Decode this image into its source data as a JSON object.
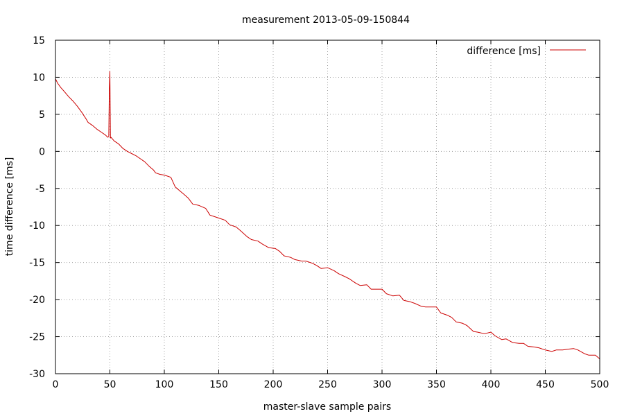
{
  "chart_data": {
    "type": "line",
    "title": "measurement 2013-05-09-150844",
    "xlabel": "master-slave sample pairs",
    "ylabel": "time difference [ms]",
    "xlim": [
      0,
      500
    ],
    "ylim": [
      -30,
      15
    ],
    "xticks": [
      0,
      50,
      100,
      150,
      200,
      250,
      300,
      350,
      400,
      450,
      500
    ],
    "yticks": [
      -30,
      -25,
      -20,
      -15,
      -10,
      -5,
      0,
      5,
      10,
      15
    ],
    "grid": true,
    "legend_position": "top-right",
    "series": [
      {
        "name": "difference [ms]",
        "color": "#cc0000",
        "points": [
          [
            0,
            9.8
          ],
          [
            2,
            9.2
          ],
          [
            5,
            8.6
          ],
          [
            8,
            8.1
          ],
          [
            12,
            7.4
          ],
          [
            16,
            6.8
          ],
          [
            20,
            6.1
          ],
          [
            24,
            5.3
          ],
          [
            28,
            4.4
          ],
          [
            30,
            3.9
          ],
          [
            34,
            3.5
          ],
          [
            38,
            3.0
          ],
          [
            42,
            2.6
          ],
          [
            46,
            2.2
          ],
          [
            48,
            1.9
          ],
          [
            49,
            2.0
          ],
          [
            49.5,
            8.5
          ],
          [
            50,
            10.8
          ],
          [
            50.5,
            1.8
          ],
          [
            51,
            1.9
          ],
          [
            54,
            1.4
          ],
          [
            58,
            1.0
          ],
          [
            62,
            0.4
          ],
          [
            66,
            0.0
          ],
          [
            70,
            -0.3
          ],
          [
            74,
            -0.6
          ],
          [
            78,
            -1.0
          ],
          [
            82,
            -1.4
          ],
          [
            86,
            -2.0
          ],
          [
            90,
            -2.5
          ],
          [
            92,
            -2.9
          ],
          [
            96,
            -3.1
          ],
          [
            100,
            -3.2
          ],
          [
            106,
            -3.5
          ],
          [
            110,
            -4.8
          ],
          [
            114,
            -5.3
          ],
          [
            118,
            -5.8
          ],
          [
            122,
            -6.3
          ],
          [
            126,
            -7.1
          ],
          [
            132,
            -7.3
          ],
          [
            138,
            -7.7
          ],
          [
            142,
            -8.6
          ],
          [
            146,
            -8.8
          ],
          [
            150,
            -9.0
          ],
          [
            156,
            -9.3
          ],
          [
            160,
            -9.9
          ],
          [
            166,
            -10.2
          ],
          [
            170,
            -10.7
          ],
          [
            176,
            -11.5
          ],
          [
            180,
            -11.9
          ],
          [
            186,
            -12.1
          ],
          [
            190,
            -12.5
          ],
          [
            196,
            -13.0
          ],
          [
            202,
            -13.1
          ],
          [
            206,
            -13.5
          ],
          [
            210,
            -14.1
          ],
          [
            216,
            -14.3
          ],
          [
            220,
            -14.6
          ],
          [
            226,
            -14.8
          ],
          [
            230,
            -14.8
          ],
          [
            236,
            -15.1
          ],
          [
            240,
            -15.4
          ],
          [
            244,
            -15.8
          ],
          [
            250,
            -15.7
          ],
          [
            256,
            -16.1
          ],
          [
            260,
            -16.5
          ],
          [
            266,
            -16.9
          ],
          [
            270,
            -17.2
          ],
          [
            276,
            -17.8
          ],
          [
            280,
            -18.1
          ],
          [
            286,
            -18.0
          ],
          [
            290,
            -18.6
          ],
          [
            296,
            -18.6
          ],
          [
            300,
            -18.6
          ],
          [
            304,
            -19.2
          ],
          [
            310,
            -19.5
          ],
          [
            316,
            -19.4
          ],
          [
            320,
            -20.1
          ],
          [
            326,
            -20.3
          ],
          [
            330,
            -20.5
          ],
          [
            336,
            -20.9
          ],
          [
            340,
            -21.0
          ],
          [
            346,
            -21.0
          ],
          [
            350,
            -21.0
          ],
          [
            354,
            -21.8
          ],
          [
            360,
            -22.1
          ],
          [
            364,
            -22.4
          ],
          [
            368,
            -23.0
          ],
          [
            374,
            -23.2
          ],
          [
            378,
            -23.5
          ],
          [
            384,
            -24.3
          ],
          [
            388,
            -24.4
          ],
          [
            394,
            -24.6
          ],
          [
            400,
            -24.4
          ],
          [
            404,
            -24.9
          ],
          [
            410,
            -25.4
          ],
          [
            414,
            -25.3
          ],
          [
            420,
            -25.8
          ],
          [
            426,
            -25.9
          ],
          [
            430,
            -25.9
          ],
          [
            434,
            -26.3
          ],
          [
            440,
            -26.4
          ],
          [
            444,
            -26.5
          ],
          [
            450,
            -26.8
          ],
          [
            456,
            -27.0
          ],
          [
            460,
            -26.8
          ],
          [
            466,
            -26.8
          ],
          [
            470,
            -26.7
          ],
          [
            476,
            -26.6
          ],
          [
            480,
            -26.8
          ],
          [
            486,
            -27.3
          ],
          [
            490,
            -27.5
          ],
          [
            496,
            -27.5
          ],
          [
            500,
            -28.0
          ]
        ]
      }
    ]
  }
}
